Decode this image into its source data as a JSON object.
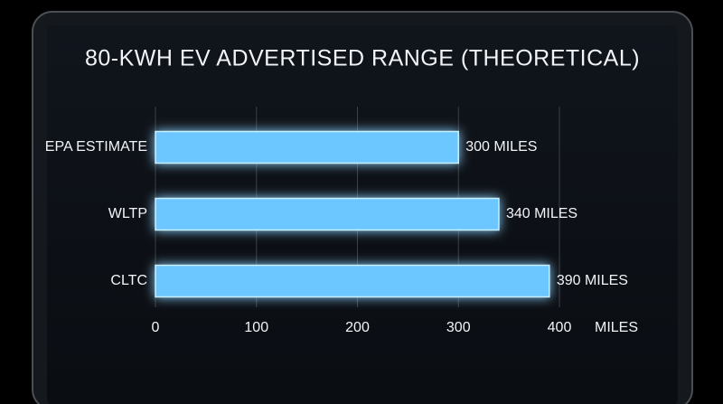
{
  "chart_data": {
    "type": "bar",
    "orientation": "horizontal",
    "title": "80-KWH EV ADVERTISED RANGE (THEORETICAL)",
    "categories": [
      "EPA ESTIMATE",
      "WLTP",
      "CLTC"
    ],
    "values": [
      300,
      340,
      390
    ],
    "value_labels": [
      "300 MILES",
      "340 MILES",
      "390 MILES"
    ],
    "color": "#6cc6ff",
    "xlabel": "MILES",
    "xlim": [
      0,
      400
    ],
    "xticks": [
      0,
      100,
      200,
      300,
      400
    ],
    "grid": true
  }
}
